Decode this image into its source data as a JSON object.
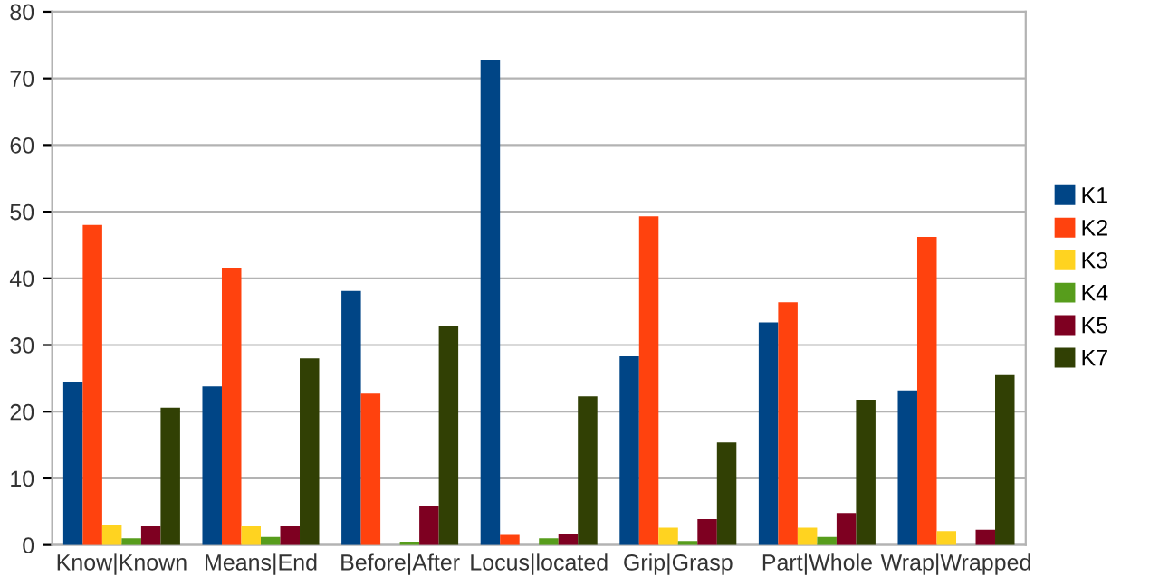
{
  "chart_data": {
    "type": "bar",
    "categories": [
      "Know|Known",
      "Means|End",
      "Before|After",
      "Locus|located",
      "Grip|Grasp",
      "Part|Whole",
      "Wrap|Wrapped"
    ],
    "series": [
      {
        "name": "K1",
        "color": "#004586",
        "values": [
          24.5,
          23.8,
          38.1,
          72.8,
          28.3,
          33.4,
          23.2
        ]
      },
      {
        "name": "K2",
        "color": "#ff420e",
        "values": [
          48,
          41.6,
          22.7,
          1.5,
          49.3,
          36.4,
          46.2
        ]
      },
      {
        "name": "K3",
        "color": "#ffd320",
        "values": [
          3,
          2.8,
          0,
          0,
          2.6,
          2.6,
          2.1
        ]
      },
      {
        "name": "K4",
        "color": "#579d1c",
        "values": [
          1,
          1.2,
          0.5,
          1,
          0.6,
          1.2,
          0
        ]
      },
      {
        "name": "K5",
        "color": "#7e0021",
        "values": [
          2.8,
          2.8,
          5.9,
          1.6,
          3.9,
          4.8,
          2.3
        ]
      },
      {
        "name": "K7",
        "color": "#314004",
        "values": [
          20.6,
          28,
          32.8,
          22.3,
          15.4,
          21.8,
          25.5
        ]
      }
    ],
    "ylim": [
      0,
      80
    ],
    "yticks": [
      0,
      10,
      20,
      30,
      40,
      50,
      60,
      70,
      80
    ],
    "grid": "y",
    "legend": "right"
  }
}
